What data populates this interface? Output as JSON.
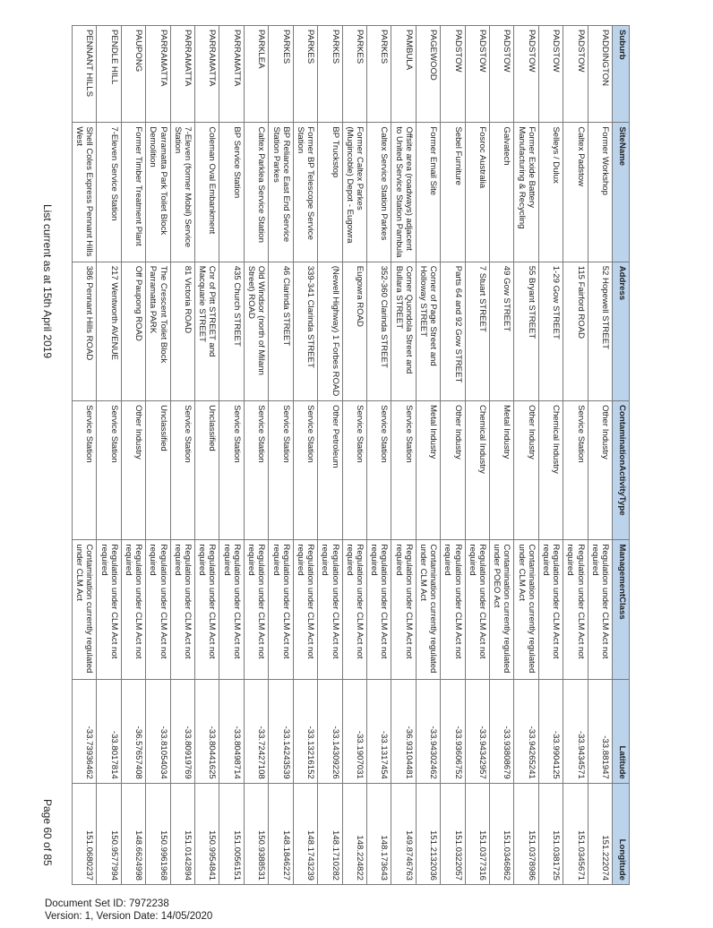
{
  "columns": [
    "Suburb",
    "SiteName",
    "Address",
    "ContaminationActivityType",
    "ManagementClass",
    "Latitude",
    "Longitude"
  ],
  "rows": [
    [
      "PADDINGTON",
      "Former Workshop",
      "52 Hopewell STREET",
      "Other Industry",
      "Regulation under CLM Act not required",
      "-33.881947",
      "151.222074"
    ],
    [
      "PADSTOW",
      "Caltex Padstow",
      "115 Fairford ROAD",
      "Service Station",
      "Regulation under CLM Act not required",
      "-33.9434571",
      "151.0345671"
    ],
    [
      "PADSTOW",
      "Selleys / Dulux",
      "1-29 Gow STREET",
      "Chemical Industry",
      "Regulation under CLM Act not required",
      "-33.9904125",
      "151.0381725"
    ],
    [
      "PADSTOW",
      "Former Exide Battery Manufacturing & Recycling",
      "55 Bryant STREET",
      "Other Industry",
      "Contamination currently regulated under CLM Act",
      "-33.94265241",
      "151.0378986"
    ],
    [
      "PADSTOW",
      "Galvatech",
      "49 Gow STREET",
      "Metal Industry",
      "Contamination currently regulated under POEO Act",
      "-33.93808679",
      "151.0346862"
    ],
    [
      "PADSTOW",
      "Fosroc Australia",
      "7 Stuart STREET",
      "Chemical Industry",
      "Regulation under CLM Act not required",
      "-33.94342957",
      "151.0377316"
    ],
    [
      "PADSTOW",
      "Sebel Furniture",
      "Parts 64 and 92 Gow STREET",
      "Other Industry",
      "Regulation under CLM Act not required",
      "-33.93606752",
      "151.0322057"
    ],
    [
      "PAGEWOOD",
      "Former Email Site",
      "Corner of Page Street and Holloway STREET",
      "Metal Industry",
      "Contamination currently regulated under CLM Act",
      "-33.94302462",
      "151.2132036"
    ],
    [
      "PAMBULA",
      "Offsite area (roadways) adjacent to United Service Station Pambula",
      "Corner Quondola Street and Bullara STREET",
      "Service Station",
      "Regulation under CLM Act not required",
      "-36.93104481",
      "149.8746763"
    ],
    [
      "PARKES",
      "Caltex Service Station Parkes",
      "352-360 Clarinda STREET",
      "Service Station",
      "Regulation under CLM Act not required",
      "-33.1317454",
      "148.173643"
    ],
    [
      "PARKES",
      "Former Caltex Parkes (Mugincoble) Depot - Eugowra",
      "Eugowra ROAD",
      "Service Station",
      "Regulation under CLM Act not required",
      "-33.1907031",
      "148.224822"
    ],
    [
      "PARKES",
      "BP Truckstop",
      "(Newell Highway) 1 Forbes ROAD",
      "Other Petroleum",
      "Regulation under CLM Act not required",
      "-33.14309226",
      "148.1710282"
    ],
    [
      "PARKES",
      "Former BP Telescope Service Station",
      "339-341 Clarinda STREET",
      "Service Station",
      "Regulation under CLM Act not required",
      "-33.13216152",
      "148.1743239"
    ],
    [
      "PARKES",
      "BP Reliance East End Service Station Parkes",
      "46 Clarinda STREET",
      "Service Station",
      "Regulation under CLM Act not required",
      "-33.14243539",
      "148.1846227"
    ],
    [
      "PARKLEA",
      "Caltex Parklea Service Station",
      "Old Windsor (north of Milann Street) ROAD",
      "Service Station",
      "Regulation under CLM Act not required",
      "-33.72427108",
      "150.9388531"
    ],
    [
      "PARRAMATTA",
      "BP Service Station",
      "435 Church STREET",
      "Service Station",
      "Regulation under CLM Act not required",
      "-33.80498714",
      "151.0056151"
    ],
    [
      "PARRAMATTA",
      "Coleman Oval Embankment",
      "Cnr of Pitt STREET and Macquarie STREET",
      "Unclassified",
      "Regulation under CLM Act not required",
      "-33.80441625",
      "150.9954841"
    ],
    [
      "PARRAMATTA",
      "7-Eleven (former Mobil) Service Station",
      "81 Victoria ROAD",
      "Service Station",
      "Regulation under CLM Act not required",
      "-33.80919769",
      "151.0142894"
    ],
    [
      "PARRAMATTA",
      "Parramatta Park Toilet Block Demolition",
      "The Crescent Toilet Block Parramatta PARK",
      "Unclassified",
      "Regulation under CLM Act not required",
      "-33.81054034",
      "150.9961968"
    ],
    [
      "PAUPONG",
      "Former Timber Treatment Plant",
      "Off Paupong ROAD",
      "Other Industry",
      "Regulation under CLM Act not required",
      "-36.57657408",
      "148.6624998"
    ],
    [
      "PENDLE HILL",
      "7-Eleven Service Station",
      "217 Wentworth AVENUE",
      "Service Station",
      "Regulation under CLM Act not required",
      "-33.8017814",
      "150.9577994"
    ],
    [
      "PENNANT HILLS",
      "Shell Coles Express Pennant Hills West",
      "386 Pennant Hills ROAD",
      "Service Station",
      "Contamination currently regulated under CLM Act",
      "-33.73936462",
      "151.0680237"
    ]
  ],
  "list_current": "List current as at 15th April 2019",
  "page_number": "Page 60 of 85",
  "footer": {
    "doc_set_id": "Document Set ID: 7972238",
    "version": "Version: 1, Version Date: 14/05/2020"
  }
}
